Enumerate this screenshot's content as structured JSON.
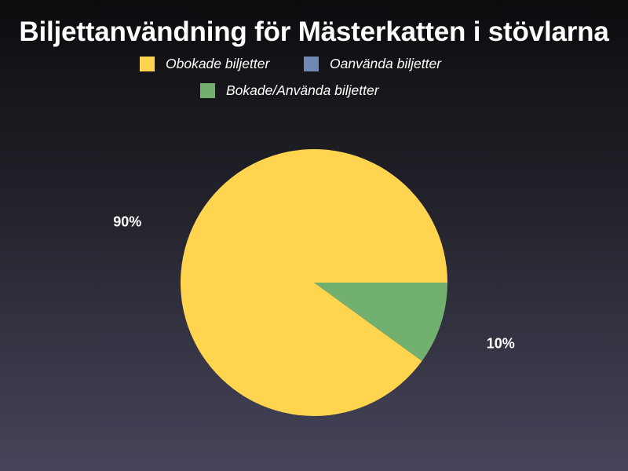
{
  "chart_data": {
    "type": "pie",
    "title": "Biljettanvändning för Mästerkatten i stövlarna",
    "legend_position": "top",
    "slices": [
      {
        "label": "Obokade biljetter",
        "value": 90,
        "color": "#ffd54f",
        "value_label": "90%"
      },
      {
        "label": "Oanvända biljetter",
        "value": 0,
        "color": "#6f89b4",
        "value_label": ""
      },
      {
        "label": "Bokade/Använda biljetter",
        "value": 10,
        "color": "#71b06e",
        "value_label": "10%"
      }
    ]
  }
}
